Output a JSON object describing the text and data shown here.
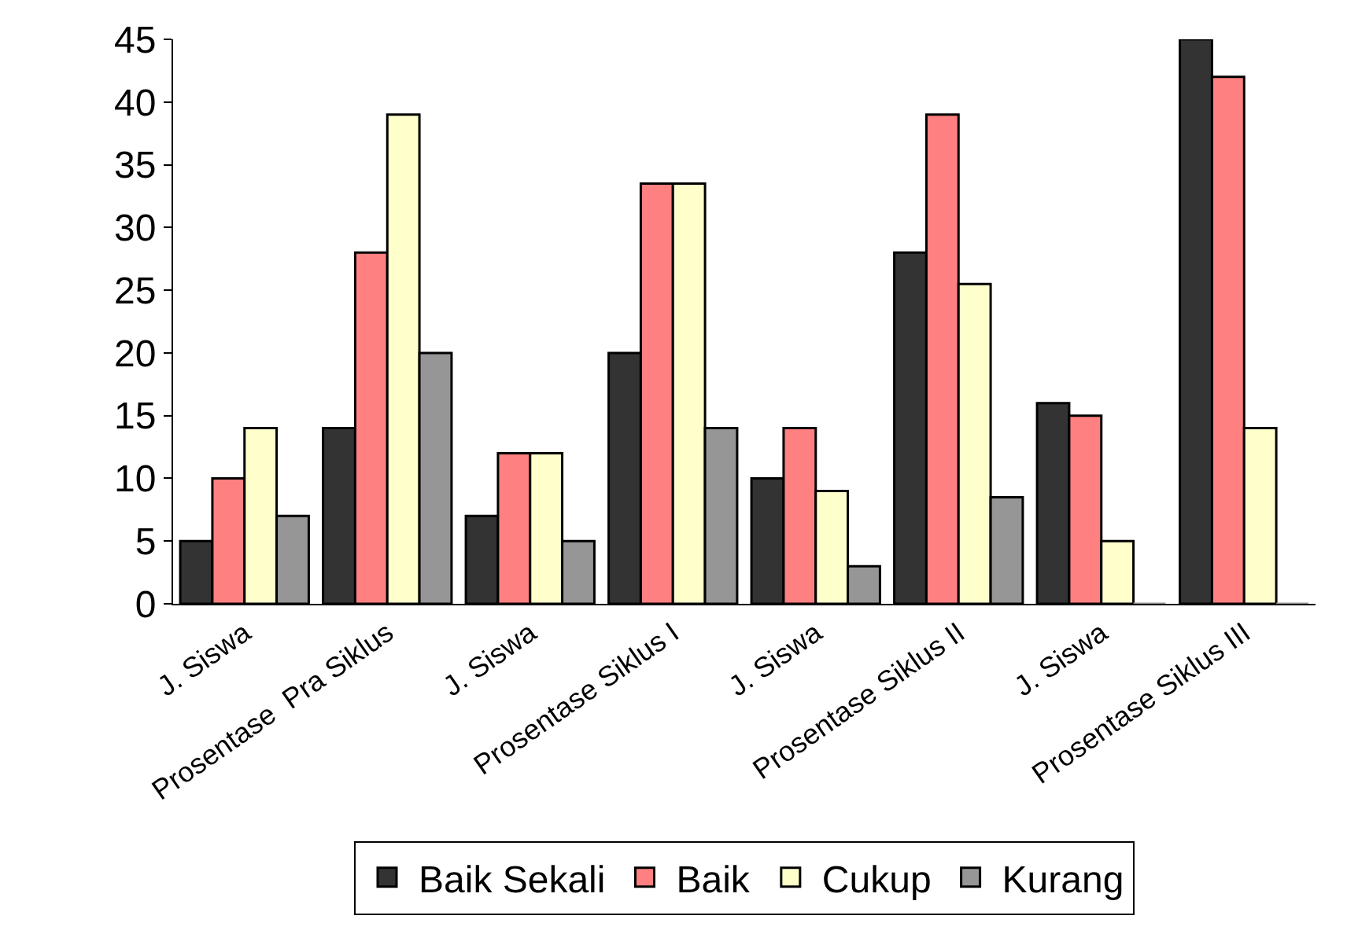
{
  "chart_data": {
    "type": "bar",
    "categories": [
      "J. Siswa",
      "Prosentase  Pra Siklus",
      "J. Siswa",
      "Prosentase Siklus I",
      "J. Siswa",
      "Prosentase Siklus II",
      "J. Siswa",
      "Prosentase Siklus III"
    ],
    "series": [
      {
        "name": "Baik Sekali",
        "color": "#333333",
        "values": [
          5,
          14,
          7,
          20,
          10,
          28,
          16,
          45
        ]
      },
      {
        "name": "Baik",
        "color": "#ff8080",
        "values": [
          10,
          28,
          12,
          33.5,
          14,
          39,
          15,
          42
        ]
      },
      {
        "name": "Cukup",
        "color": "#ffffcc",
        "values": [
          14,
          39,
          12,
          33.5,
          9,
          25.5,
          5,
          14
        ]
      },
      {
        "name": "Kurang",
        "color": "#969696",
        "values": [
          7,
          20,
          5,
          14,
          3,
          8.5,
          0,
          0
        ]
      }
    ],
    "ylim": [
      0,
      45
    ],
    "yticks": [
      0,
      5,
      10,
      15,
      20,
      25,
      30,
      35,
      40,
      45
    ],
    "legend": "bottom"
  }
}
